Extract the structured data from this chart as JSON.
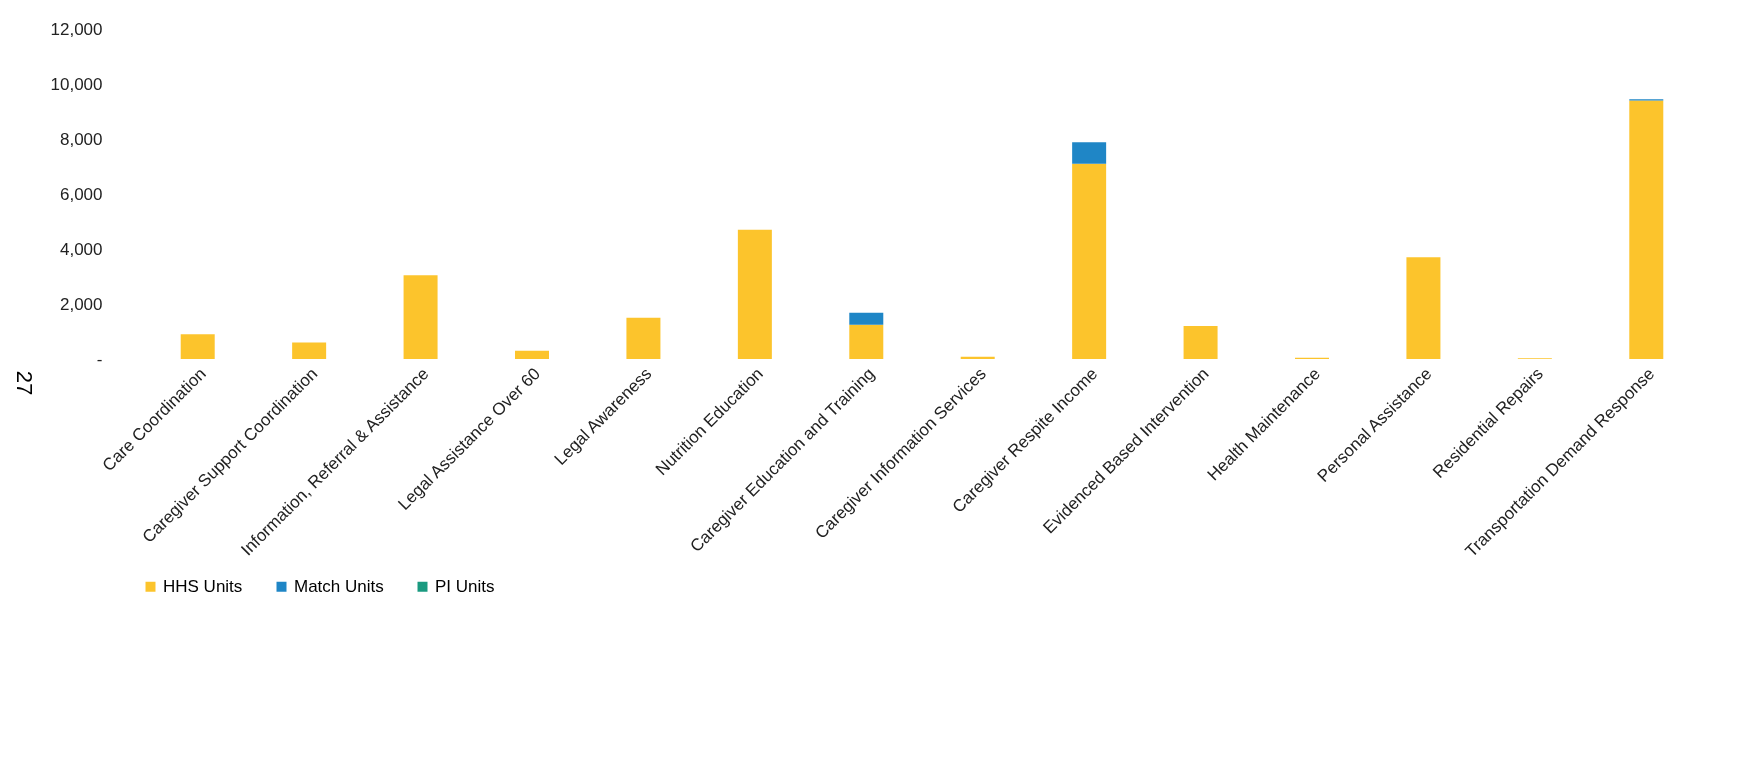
{
  "chart_data": {
    "type": "bar",
    "stacked": true,
    "categories": [
      "Care Coordination",
      "Caregiver Support Coordination",
      "Information, Referral & Assistance",
      "Legal Assistance Over 60",
      "Legal Awareness",
      "Nutrition Education",
      "Caregiver Education and Training",
      "Caregiver Information Services",
      "Caregiver Respite Income",
      "Evidenced Based Intervention",
      "Health Maintenance",
      "Personal Assistance",
      "Residential Repairs",
      "Transportation Demand Response"
    ],
    "series": [
      {
        "name": "HHS Units",
        "color": "#fcc42c",
        "values": [
          900,
          600,
          3050,
          300,
          1500,
          4700,
          1250,
          80,
          7100,
          1200,
          50,
          3700,
          30,
          9400
        ]
      },
      {
        "name": "Match Units",
        "color": "#1f86c6",
        "values": [
          null,
          null,
          null,
          null,
          null,
          null,
          430,
          null,
          780,
          null,
          null,
          null,
          null,
          50
        ]
      },
      {
        "name": "PI Units",
        "color": "#1a9a80",
        "values": [
          null,
          null,
          null,
          null,
          null,
          null,
          null,
          null,
          null,
          null,
          null,
          null,
          null,
          null
        ]
      }
    ],
    "ylim": [
      0,
      12000
    ],
    "yticks": [
      {
        "value": 0,
        "label": "-"
      },
      {
        "value": 2000,
        "label": "2,000"
      },
      {
        "value": 4000,
        "label": "4,000"
      },
      {
        "value": 6000,
        "label": "6,000"
      },
      {
        "value": 8000,
        "label": "8,000"
      },
      {
        "value": 10000,
        "label": "10,000"
      },
      {
        "value": 12000,
        "label": "12,000"
      }
    ],
    "grid": false,
    "legend": "bottom",
    "annotations": [
      "27"
    ]
  }
}
